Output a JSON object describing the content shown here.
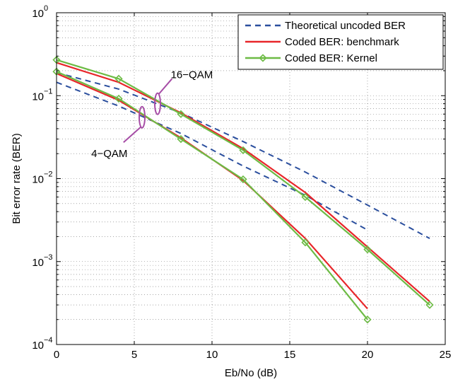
{
  "chart_data": {
    "type": "line",
    "xlabel": "Eb/No (dB)",
    "ylabel": "Bit error rate (BER)",
    "xlim": [
      0,
      25
    ],
    "ylim": [
      0.0001,
      1
    ],
    "yscale": "log",
    "grid": true,
    "legend_placement": "top-right",
    "x_ticks": [
      {
        "value": 0,
        "label": "0"
      },
      {
        "value": 5,
        "label": "5"
      },
      {
        "value": 10,
        "label": "10"
      },
      {
        "value": 15,
        "label": "15"
      },
      {
        "value": 20,
        "label": "20"
      },
      {
        "value": 25,
        "label": "25"
      }
    ],
    "y_ticks": [
      {
        "value": 0.0001,
        "base": "10",
        "exp": "−4"
      },
      {
        "value": 0.001,
        "base": "10",
        "exp": "−3"
      },
      {
        "value": 0.01,
        "base": "10",
        "exp": "−2"
      },
      {
        "value": 0.1,
        "base": "10",
        "exp": "−1"
      },
      {
        "value": 1,
        "base": "10",
        "exp": "0"
      }
    ],
    "legend": [
      {
        "label": "Theoretical uncoded BER",
        "style": "dashed",
        "color": "#2b4f9e"
      },
      {
        "label": "Coded BER: benchmark",
        "style": "solid",
        "color": "#e8262a"
      },
      {
        "label": "Coded BER: Kernel",
        "style": "solid-diamond",
        "color": "#6dbb45"
      }
    ],
    "series": [
      {
        "group": "Theoretical uncoded BER",
        "style": "dashed",
        "color": "#2b4f9e",
        "x": [
          0,
          4,
          8,
          12,
          16,
          20
        ],
        "y": [
          0.145,
          0.075,
          0.035,
          0.0142,
          0.0063,
          0.0024
        ]
      },
      {
        "group": "Theoretical uncoded BER",
        "style": "dashed",
        "color": "#2b4f9e",
        "x": [
          0,
          4,
          8,
          12,
          16,
          20,
          24
        ],
        "y": [
          0.19,
          0.12,
          0.062,
          0.028,
          0.012,
          0.0048,
          0.0019
        ]
      },
      {
        "group": "Coded BER: benchmark",
        "style": "solid",
        "color": "#e8262a",
        "x": [
          0,
          4,
          8,
          12,
          16,
          20
        ],
        "y": [
          0.185,
          0.088,
          0.031,
          0.0095,
          0.0019,
          0.00027
        ]
      },
      {
        "group": "Coded BER: benchmark",
        "style": "solid",
        "color": "#e8262a",
        "x": [
          0,
          4,
          8,
          12,
          16,
          20,
          24
        ],
        "y": [
          0.25,
          0.145,
          0.062,
          0.023,
          0.0068,
          0.0015,
          0.00033
        ]
      },
      {
        "group": "Coded BER: Kernel",
        "style": "solid-diamond",
        "color": "#6dbb45",
        "x": [
          0,
          4,
          8,
          12,
          16,
          20
        ],
        "y": [
          0.195,
          0.092,
          0.03,
          0.0098,
          0.0017,
          0.0002
        ]
      },
      {
        "group": "Coded BER: Kernel",
        "style": "solid-diamond",
        "color": "#6dbb45",
        "x": [
          0,
          4,
          8,
          12,
          16,
          20,
          24
        ],
        "y": [
          0.27,
          0.16,
          0.06,
          0.022,
          0.006,
          0.0014,
          0.0003
        ]
      }
    ],
    "annotations": [
      {
        "text": "16−QAM",
        "ellipse_at": {
          "x": 6.5,
          "y": 0.08
        },
        "label_at": {
          "x": 8.7,
          "y": 0.18
        }
      },
      {
        "text": "4−QAM",
        "ellipse_at": {
          "x": 5.5,
          "y": 0.055
        },
        "label_at": {
          "x": 3.4,
          "y": 0.02
        }
      }
    ],
    "annotation_color": "#a64da6"
  }
}
